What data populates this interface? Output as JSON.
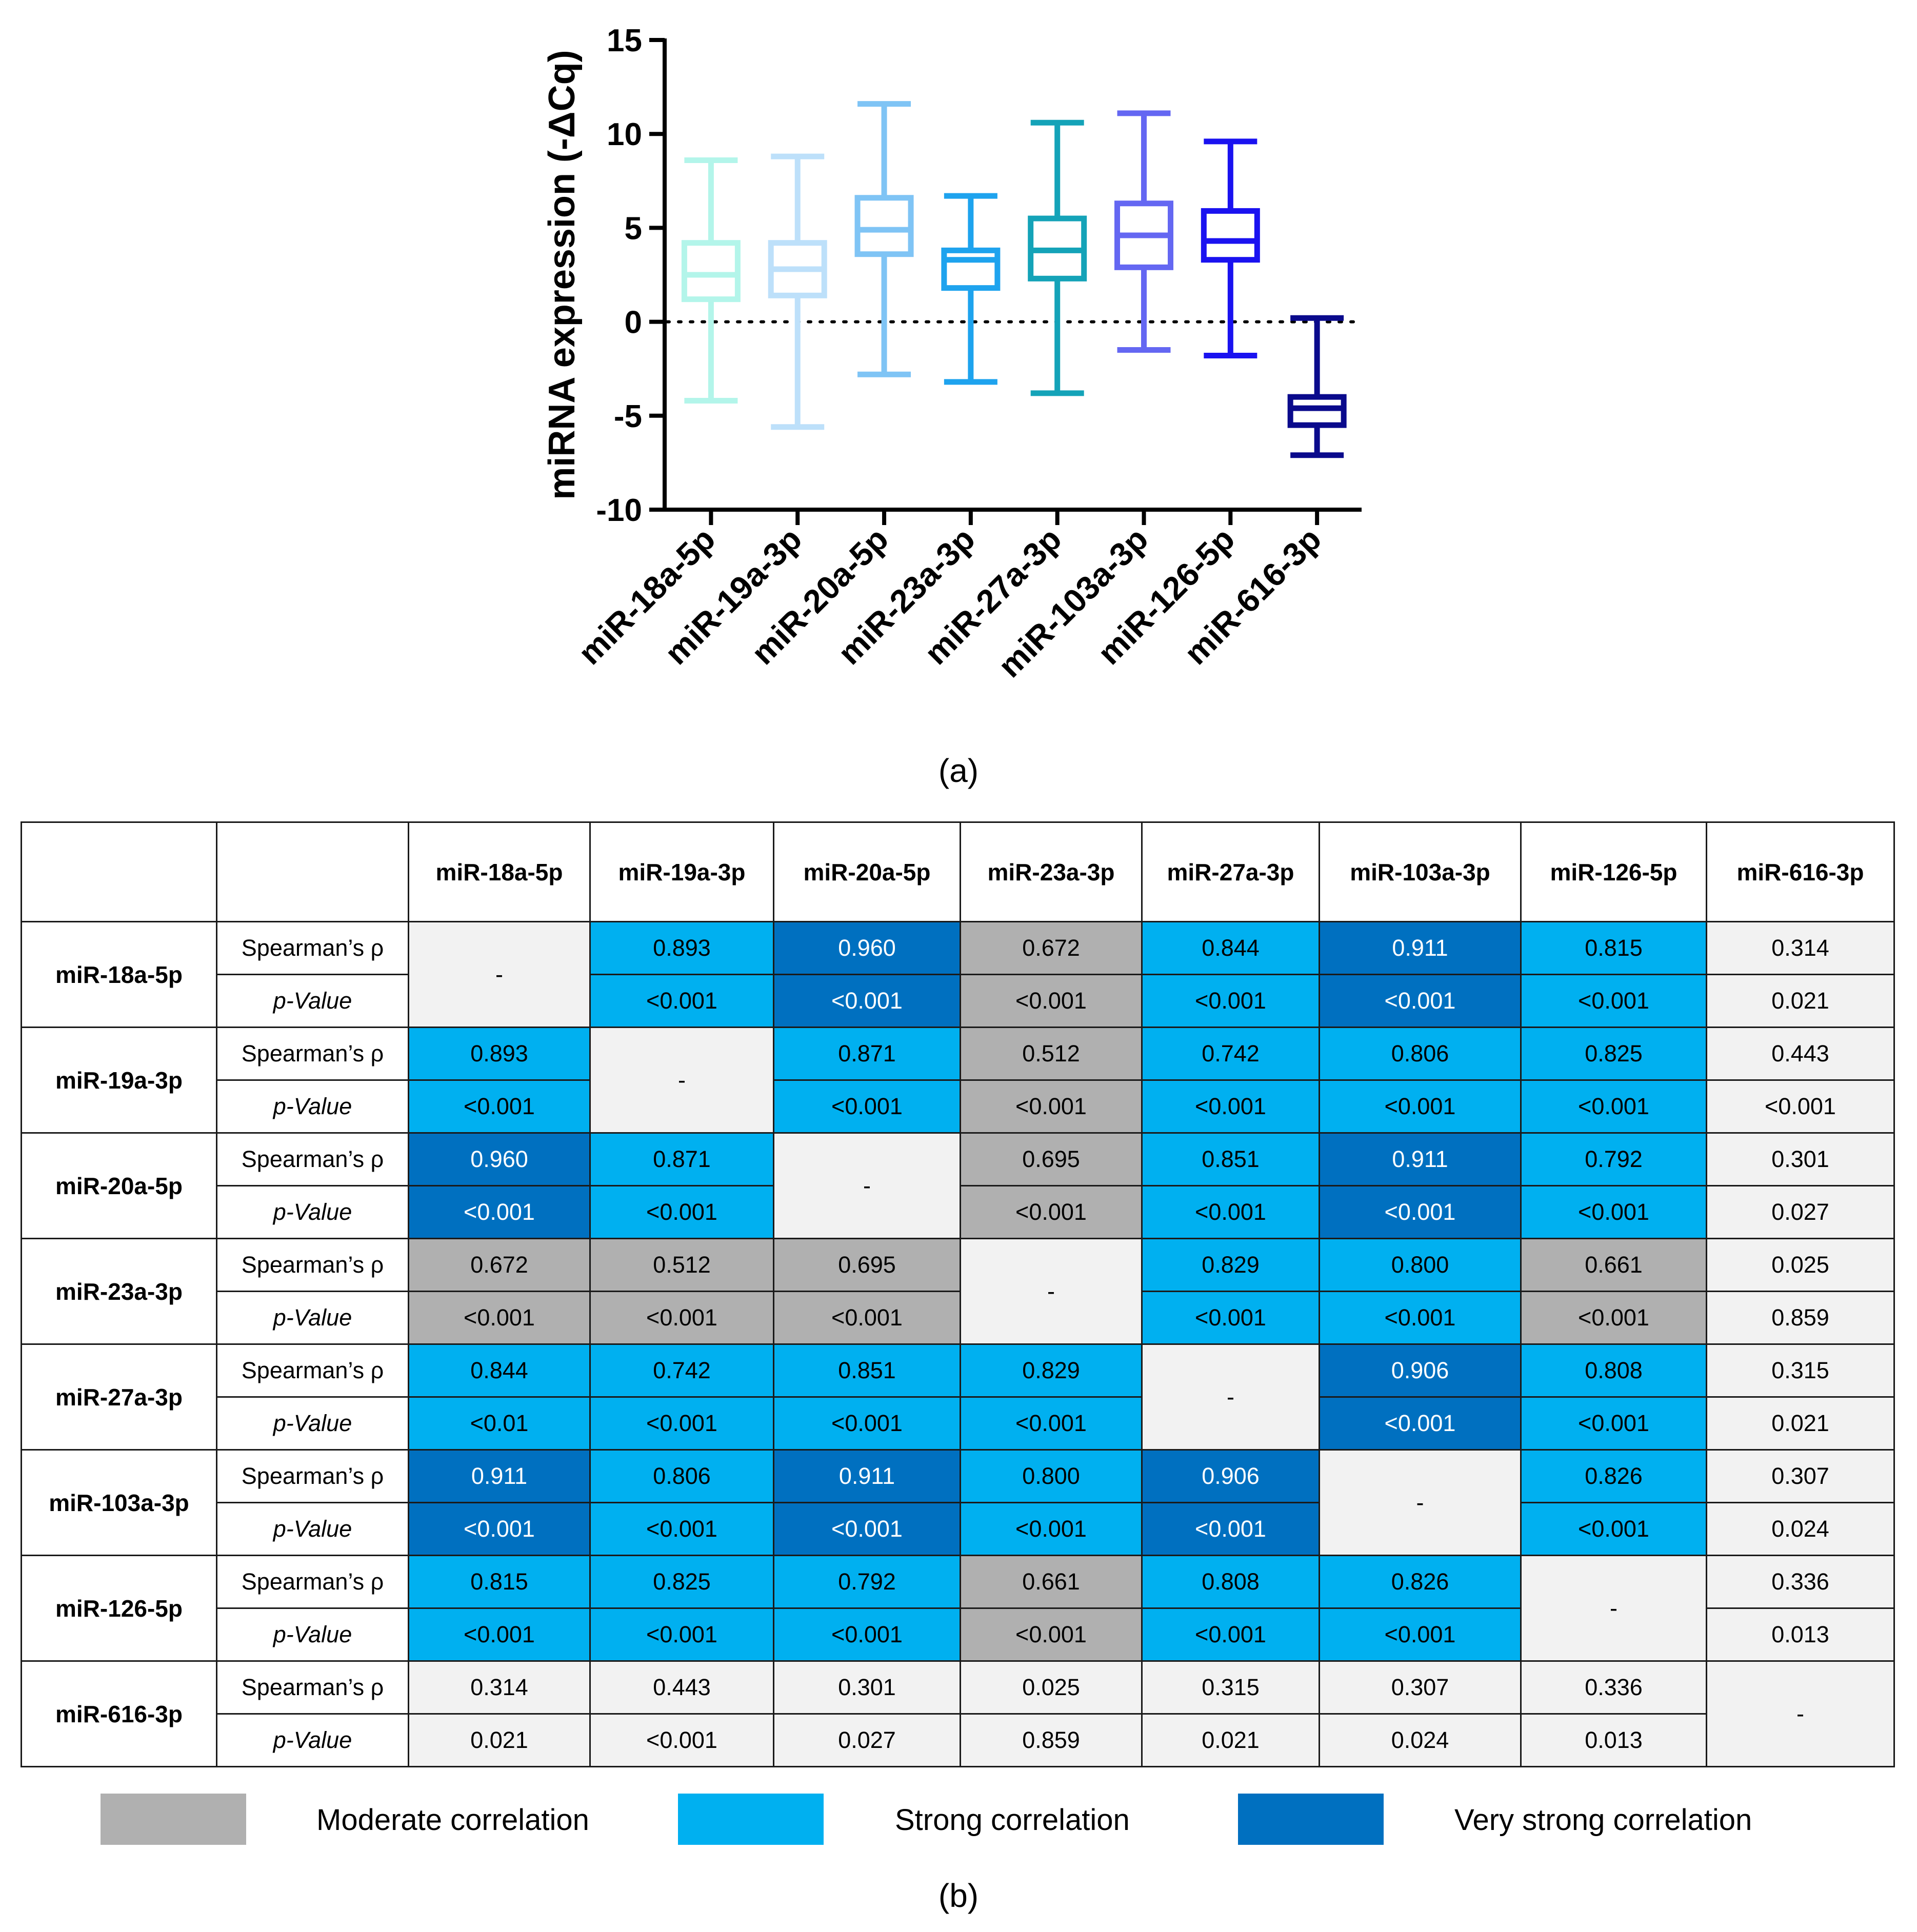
{
  "chart_data": [
    {
      "type": "boxplot",
      "title": "",
      "ylabel": "miRNA expression (-ΔCq)",
      "xlabel": "",
      "ylim": [
        -10,
        15
      ],
      "yticks": [
        "15",
        "10",
        "5",
        "0",
        "-5",
        "-10"
      ],
      "reference_line": {
        "y": 0,
        "style": "dotted"
      },
      "categories": [
        "miR-18a-5p",
        "miR-19a-3p",
        "miR-20a-5p",
        "miR-23a-3p",
        "miR-27a-3p",
        "miR-103a-3p",
        "miR-126-5p",
        "miR-616-3p"
      ],
      "series": [
        {
          "name": "miR-18a-5p",
          "min": -4.2,
          "q1": 1.2,
          "median": 2.5,
          "q3": 4.2,
          "max": 8.6,
          "color": "#b3f5ea"
        },
        {
          "name": "miR-19a-3p",
          "min": -5.6,
          "q1": 1.4,
          "median": 2.8,
          "q3": 4.2,
          "max": 8.8,
          "color": "#bde0fa"
        },
        {
          "name": "miR-20a-5p",
          "min": -2.8,
          "q1": 3.6,
          "median": 4.9,
          "q3": 6.6,
          "max": 11.6,
          "color": "#7fc4f5"
        },
        {
          "name": "miR-23a-3p",
          "min": -3.2,
          "q1": 1.8,
          "median": 3.3,
          "q3": 3.8,
          "max": 6.7,
          "color": "#1ea3ee"
        },
        {
          "name": "miR-27a-3p",
          "min": -3.8,
          "q1": 2.3,
          "median": 3.8,
          "q3": 5.5,
          "max": 10.6,
          "color": "#14a3b8"
        },
        {
          "name": "miR-103a-3p",
          "min": -1.5,
          "q1": 2.9,
          "median": 4.6,
          "q3": 6.3,
          "max": 11.1,
          "color": "#6467f2"
        },
        {
          "name": "miR-126-5p",
          "min": -1.8,
          "q1": 3.3,
          "median": 4.3,
          "q3": 5.9,
          "max": 9.6,
          "color": "#1a12f0"
        },
        {
          "name": "miR-616-3p",
          "min": -7.1,
          "q1": -5.5,
          "median": -4.6,
          "q3": -4.0,
          "max": 0.2,
          "color": "#0a0a8c"
        }
      ]
    },
    {
      "type": "table",
      "title": "",
      "columns": [
        "miR-18a-5p",
        "miR-19a-3p",
        "miR-20a-5p",
        "miR-23a-3p",
        "miR-27a-3p",
        "miR-103a-3p",
        "miR-126-5p",
        "miR-616-3p"
      ],
      "stat_labels": [
        "Spearman’s ρ",
        "p-Value"
      ],
      "rows": [
        {
          "label": "miR-18a-5p",
          "rho": [
            "-",
            "0.893",
            "0.960",
            "0.672",
            "0.844",
            "0.911",
            "0.815",
            "0.314"
          ],
          "p": [
            "-",
            "<0.001",
            "<0.001",
            "<0.001",
            "<0.001",
            "<0.001",
            "<0.001",
            "0.021"
          ],
          "cls": [
            "self",
            "strong",
            "very",
            "moderate",
            "strong",
            "very",
            "strong",
            "none"
          ]
        },
        {
          "label": "miR-19a-3p",
          "rho": [
            "0.893",
            "-",
            "0.871",
            "0.512",
            "0.742",
            "0.806",
            "0.825",
            "0.443"
          ],
          "p": [
            "<0.001",
            "-",
            "<0.001",
            "<0.001",
            "<0.001",
            "<0.001",
            "<0.001",
            "<0.001"
          ],
          "cls": [
            "strong",
            "self",
            "strong",
            "moderate",
            "strong",
            "strong",
            "strong",
            "none"
          ]
        },
        {
          "label": "miR-20a-5p",
          "rho": [
            "0.960",
            "0.871",
            "-",
            "0.695",
            "0.851",
            "0.911",
            "0.792",
            "0.301"
          ],
          "p": [
            "<0.001",
            "<0.001",
            "-",
            "<0.001",
            "<0.001",
            "<0.001",
            "<0.001",
            "0.027"
          ],
          "cls": [
            "very",
            "strong",
            "self",
            "moderate",
            "strong",
            "very",
            "strong",
            "none"
          ]
        },
        {
          "label": "miR-23a-3p",
          "rho": [
            "0.672",
            "0.512",
            "0.695",
            "-",
            "0.829",
            "0.800",
            "0.661",
            "0.025"
          ],
          "p": [
            "<0.001",
            "<0.001",
            "<0.001",
            "-",
            "<0.001",
            "<0.001",
            "<0.001",
            "0.859"
          ],
          "cls": [
            "moderate",
            "moderate",
            "moderate",
            "self",
            "strong",
            "strong",
            "moderate",
            "none"
          ]
        },
        {
          "label": "miR-27a-3p",
          "rho": [
            "0.844",
            "0.742",
            "0.851",
            "0.829",
            "-",
            "0.906",
            "0.808",
            "0.315"
          ],
          "p": [
            "<0.01",
            "<0.001",
            "<0.001",
            "<0.001",
            "-",
            "<0.001",
            "<0.001",
            "0.021"
          ],
          "cls": [
            "strong",
            "strong",
            "strong",
            "strong",
            "self",
            "very",
            "strong",
            "none"
          ]
        },
        {
          "label": "miR-103a-3p",
          "rho": [
            "0.911",
            "0.806",
            "0.911",
            "0.800",
            "0.906",
            "-",
            "0.826",
            "0.307"
          ],
          "p": [
            "<0.001",
            "<0.001",
            "<0.001",
            "<0.001",
            "<0.001",
            "-",
            "<0.001",
            "0.024"
          ],
          "cls": [
            "very",
            "strong",
            "very",
            "strong",
            "very",
            "self",
            "strong",
            "none"
          ]
        },
        {
          "label": "miR-126-5p",
          "rho": [
            "0.815",
            "0.825",
            "0.792",
            "0.661",
            "0.808",
            "0.826",
            "-",
            "0.336"
          ],
          "p": [
            "<0.001",
            "<0.001",
            "<0.001",
            "<0.001",
            "<0.001",
            "<0.001",
            "-",
            "0.013"
          ],
          "cls": [
            "strong",
            "strong",
            "strong",
            "moderate",
            "strong",
            "strong",
            "self",
            "none"
          ]
        },
        {
          "label": "miR-616-3p",
          "rho": [
            "0.314",
            "0.443",
            "0.301",
            "0.025",
            "0.315",
            "0.307",
            "0.336",
            "-"
          ],
          "p": [
            "0.021",
            "<0.001",
            "0.027",
            "0.859",
            "0.021",
            "0.024",
            "0.013",
            "-"
          ],
          "cls": [
            "none",
            "none",
            "none",
            "none",
            "none",
            "none",
            "none",
            "self"
          ]
        }
      ],
      "legend": [
        {
          "label": "Moderate correlation",
          "color": "#b0b0b0"
        },
        {
          "label": "Strong correlation",
          "color": "#00b0f0"
        },
        {
          "label": "Very strong correlation",
          "color": "#0070c0"
        }
      ]
    }
  ],
  "panel_labels": {
    "a": "(a)",
    "b": "(b)"
  }
}
